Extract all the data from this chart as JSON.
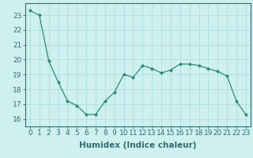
{
  "x": [
    0,
    1,
    2,
    3,
    4,
    5,
    6,
    7,
    8,
    9,
    10,
    11,
    12,
    13,
    14,
    15,
    16,
    17,
    18,
    19,
    20,
    21,
    22,
    23
  ],
  "y": [
    23.3,
    23.0,
    19.9,
    18.5,
    17.2,
    16.9,
    16.3,
    16.3,
    17.2,
    17.8,
    19.0,
    18.8,
    19.6,
    19.4,
    19.1,
    19.3,
    19.7,
    19.7,
    19.6,
    19.4,
    19.2,
    18.9,
    17.2,
    16.3
  ],
  "line_color": "#2d8b77",
  "marker": "D",
  "marker_size": 2,
  "bg_color": "#cff0f0",
  "grid_color": "#aadddd",
  "xlabel": "Humidex (Indice chaleur)",
  "ylim": [
    15.5,
    23.8
  ],
  "xlim": [
    -0.5,
    23.5
  ],
  "yticks": [
    16,
    17,
    18,
    19,
    20,
    21,
    22,
    23
  ],
  "xticks": [
    0,
    1,
    2,
    3,
    4,
    5,
    6,
    7,
    8,
    9,
    10,
    11,
    12,
    13,
    14,
    15,
    16,
    17,
    18,
    19,
    20,
    21,
    22,
    23
  ],
  "xlabel_fontsize": 7.5,
  "tick_fontsize": 6.5,
  "tick_color": "#2d6e6e",
  "spine_color": "#2d6e6e"
}
